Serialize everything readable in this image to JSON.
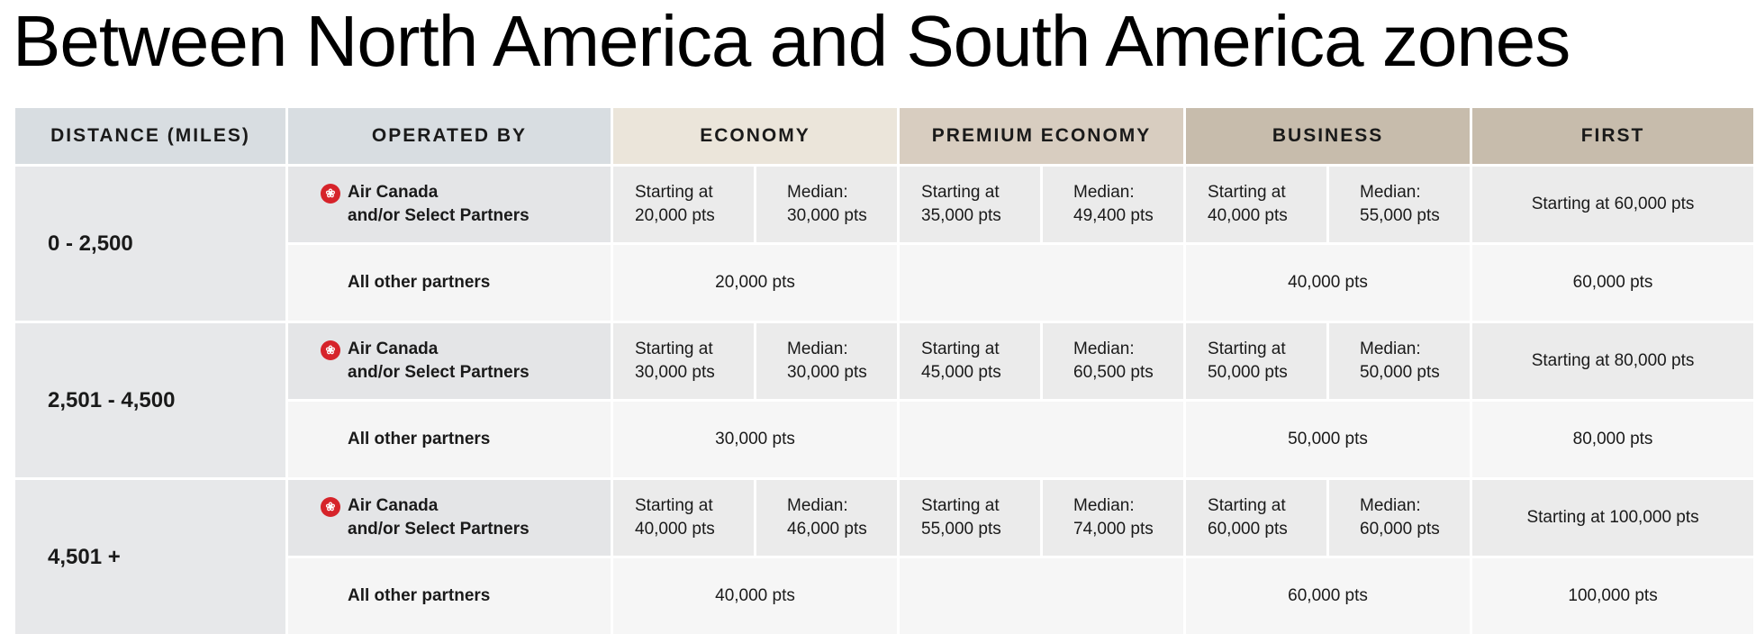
{
  "title": "Between North America and South America zones",
  "headers": {
    "distance": "DISTANCE (MILES)",
    "operated_by": "OPERATED BY",
    "economy": "ECONOMY",
    "premium_economy": "PREMIUM ECONOMY",
    "business": "BUSINESS",
    "first": "FIRST"
  },
  "ac_icon": "maple-leaf-icon",
  "ac_line1": "Air Canada",
  "ac_line2": "and/or Select Partners",
  "other_label": "All other partners",
  "rows": [
    {
      "distance": "0 - 2,500",
      "ac": {
        "eco_start": [
          "Starting at",
          "20,000 pts"
        ],
        "eco_median": [
          "Median:",
          "30,000 pts"
        ],
        "prem_start": [
          "Starting at",
          "35,000 pts"
        ],
        "prem_median": [
          "Median:",
          "49,400 pts"
        ],
        "bus_start": [
          "Starting at",
          "40,000 pts"
        ],
        "bus_median": [
          "Median:",
          "55,000 pts"
        ],
        "first": "Starting at 60,000 pts"
      },
      "other": {
        "eco": "20,000 pts",
        "prem": "",
        "bus": "40,000 pts",
        "first": "60,000 pts"
      }
    },
    {
      "distance": "2,501 - 4,500",
      "ac": {
        "eco_start": [
          "Starting at",
          "30,000 pts"
        ],
        "eco_median": [
          "Median:",
          "30,000 pts"
        ],
        "prem_start": [
          "Starting at",
          "45,000 pts"
        ],
        "prem_median": [
          "Median:",
          "60,500 pts"
        ],
        "bus_start": [
          "Starting at",
          "50,000 pts"
        ],
        "bus_median": [
          "Median:",
          "50,000 pts"
        ],
        "first": "Starting at 80,000 pts"
      },
      "other": {
        "eco": "30,000 pts",
        "prem": "",
        "bus": "50,000 pts",
        "first": "80,000 pts"
      }
    },
    {
      "distance": "4,501 +",
      "ac": {
        "eco_start": [
          "Starting at",
          "40,000 pts"
        ],
        "eco_median": [
          "Median:",
          "46,000 pts"
        ],
        "prem_start": [
          "Starting at",
          "55,000 pts"
        ],
        "prem_median": [
          "Median:",
          "74,000 pts"
        ],
        "bus_start": [
          "Starting at",
          "60,000 pts"
        ],
        "bus_median": [
          "Median:",
          "60,000 pts"
        ],
        "first": "Starting at 100,000 pts"
      },
      "other": {
        "eco": "40,000 pts",
        "prem": "",
        "bus": "60,000 pts",
        "first": "100,000 pts"
      }
    }
  ],
  "colors": {
    "header_grey": "#d8dde1",
    "header_economy": "#ebe5da",
    "header_premium": "#d8cdc0",
    "header_business": "#c7bcac",
    "air_canada_red": "#d6232a"
  }
}
